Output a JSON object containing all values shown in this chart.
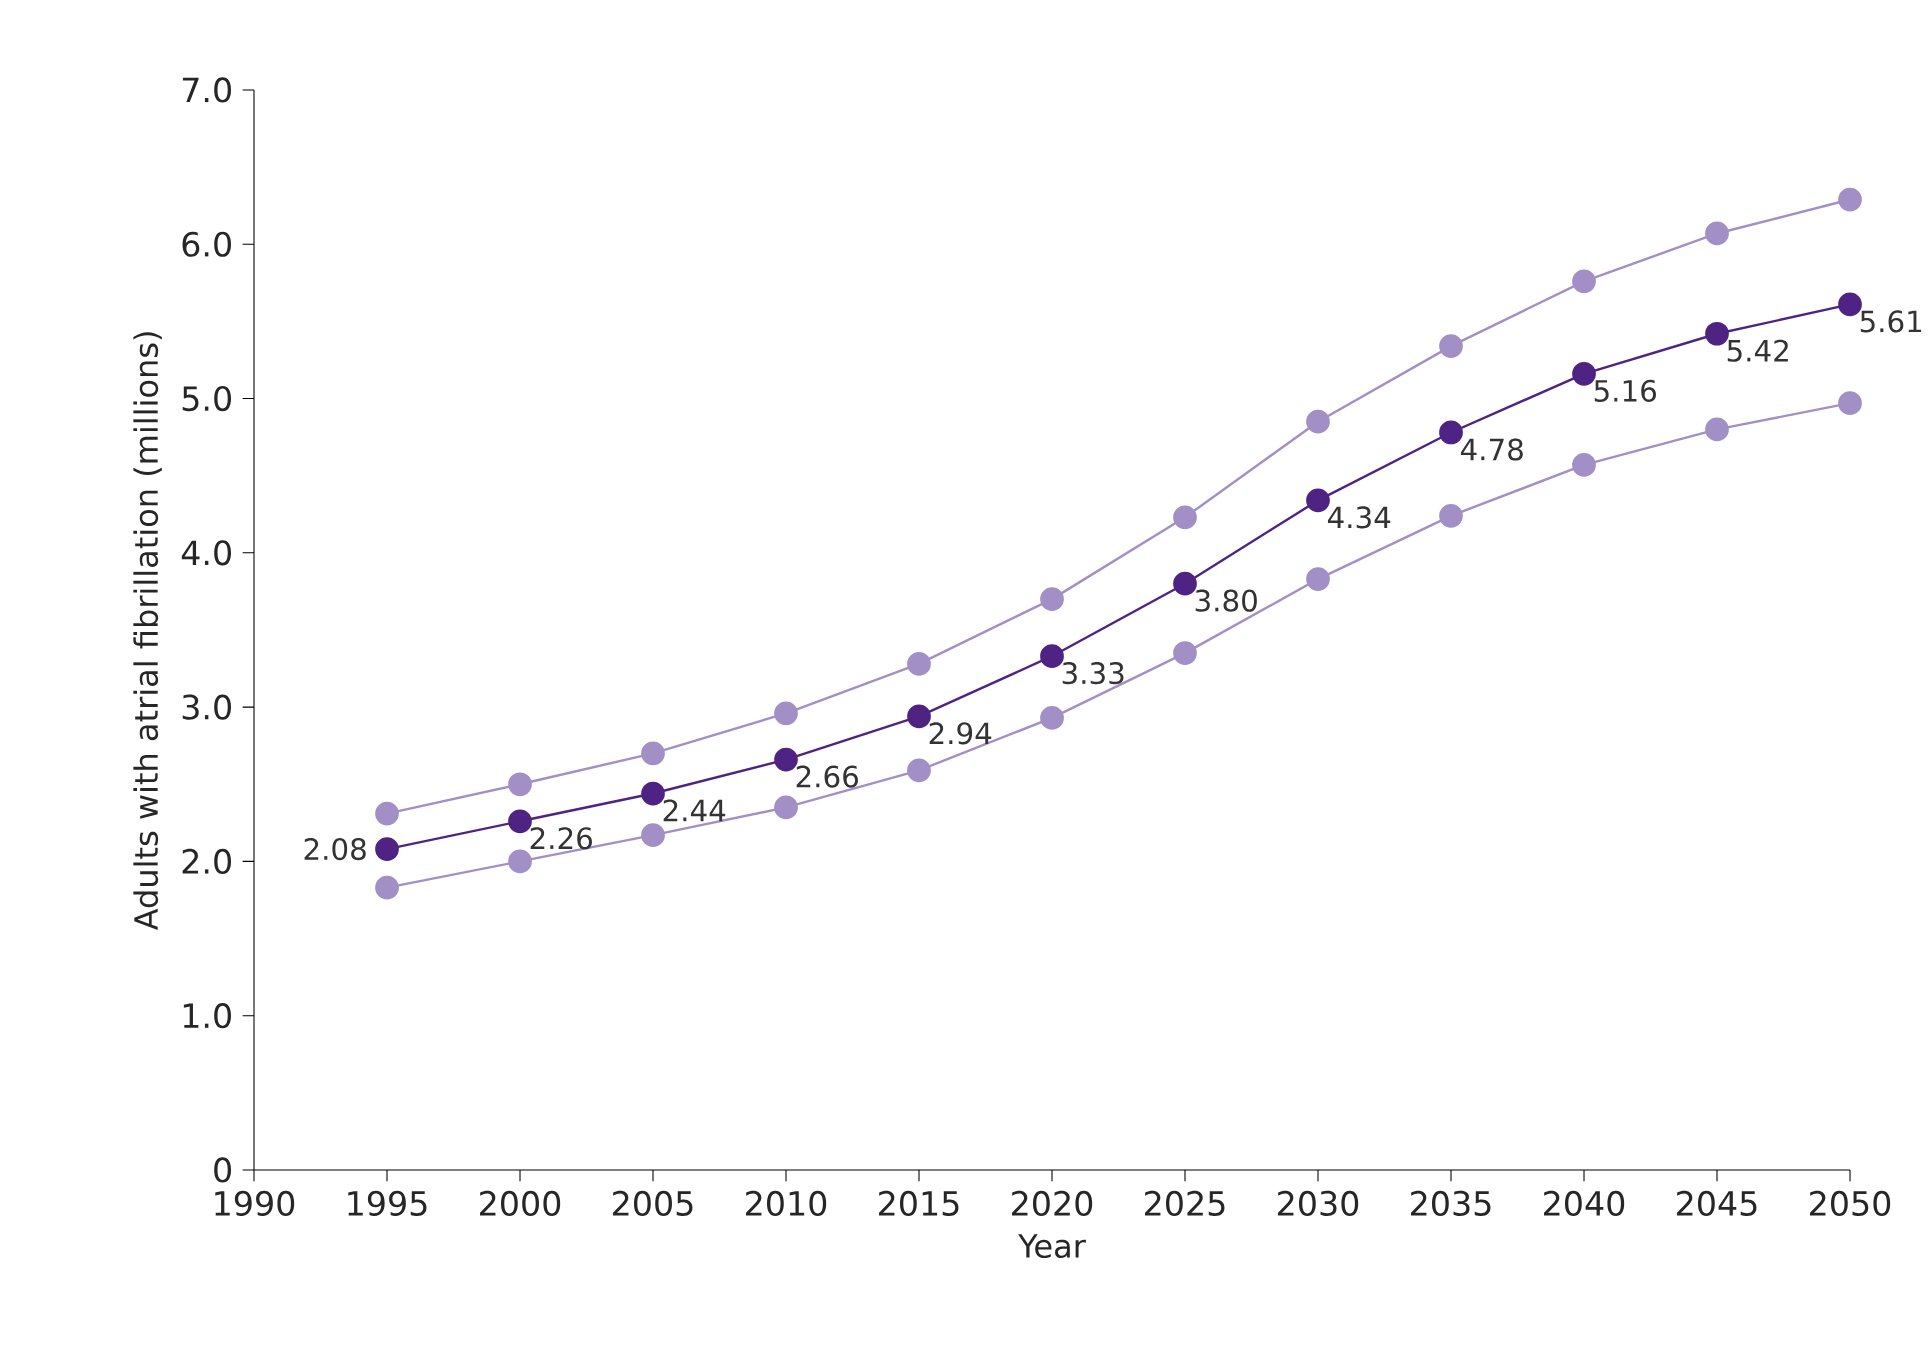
{
  "chart_data": {
    "type": "line",
    "xlabel": "Year",
    "ylabel": "Adults with atrial fibrillation (millions)",
    "x": [
      1995,
      2000,
      2005,
      2010,
      2015,
      2020,
      2025,
      2030,
      2035,
      2040,
      2045,
      2050
    ],
    "series": [
      {
        "color": "#a28fc6",
        "values": [
          2.31,
          2.5,
          2.7,
          2.96,
          3.28,
          3.7,
          4.23,
          4.85,
          5.34,
          5.76,
          6.07,
          6.29
        ]
      },
      {
        "color": "#a28fc6",
        "values": [
          1.83,
          2.0,
          2.17,
          2.35,
          2.59,
          2.93,
          3.35,
          3.83,
          4.24,
          4.57,
          4.8,
          4.97
        ]
      },
      {
        "color": "#4e2383",
        "values": [
          2.08,
          2.26,
          2.44,
          2.66,
          2.94,
          3.33,
          3.8,
          4.34,
          4.78,
          5.16,
          5.42,
          5.61
        ],
        "value_labels": [
          "2.08",
          "2.26",
          "2.44",
          "2.66",
          "2.94",
          "3.33",
          "3.80",
          "4.34",
          "4.78",
          "5.16",
          "5.42",
          "5.61"
        ]
      }
    ],
    "xlim": [
      1990,
      2050
    ],
    "ylim": [
      0,
      7
    ],
    "xticks": [
      1990,
      1995,
      2000,
      2005,
      2010,
      2015,
      2020,
      2025,
      2030,
      2035,
      2040,
      2045,
      2050
    ],
    "yticks": [
      0,
      {
        "value": 1,
        "label": "1.0"
      },
      {
        "value": 2,
        "label": "2.0"
      },
      {
        "value": 3,
        "label": "3.0"
      },
      {
        "value": 4,
        "label": "4.0"
      },
      {
        "value": 5,
        "label": "5.0"
      },
      {
        "value": 6,
        "label": "6.0"
      },
      {
        "value": 7,
        "label": "7.0"
      }
    ],
    "marker": "circle",
    "line_style": "solid"
  }
}
